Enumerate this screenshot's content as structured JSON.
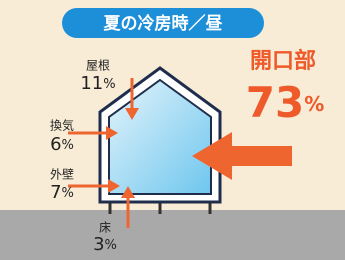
{
  "title": "夏の冷房時／昼",
  "items": [
    {
      "label": "屋根",
      "value": "11",
      "unit": "%"
    },
    {
      "label": "換気",
      "value": "6",
      "unit": "%"
    },
    {
      "label": "外壁",
      "value": "7",
      "unit": "%"
    },
    {
      "label": "床",
      "value": "3",
      "unit": "%"
    }
  ],
  "highlight": {
    "label": "開口部",
    "value": "73",
    "unit": "%"
  }
}
